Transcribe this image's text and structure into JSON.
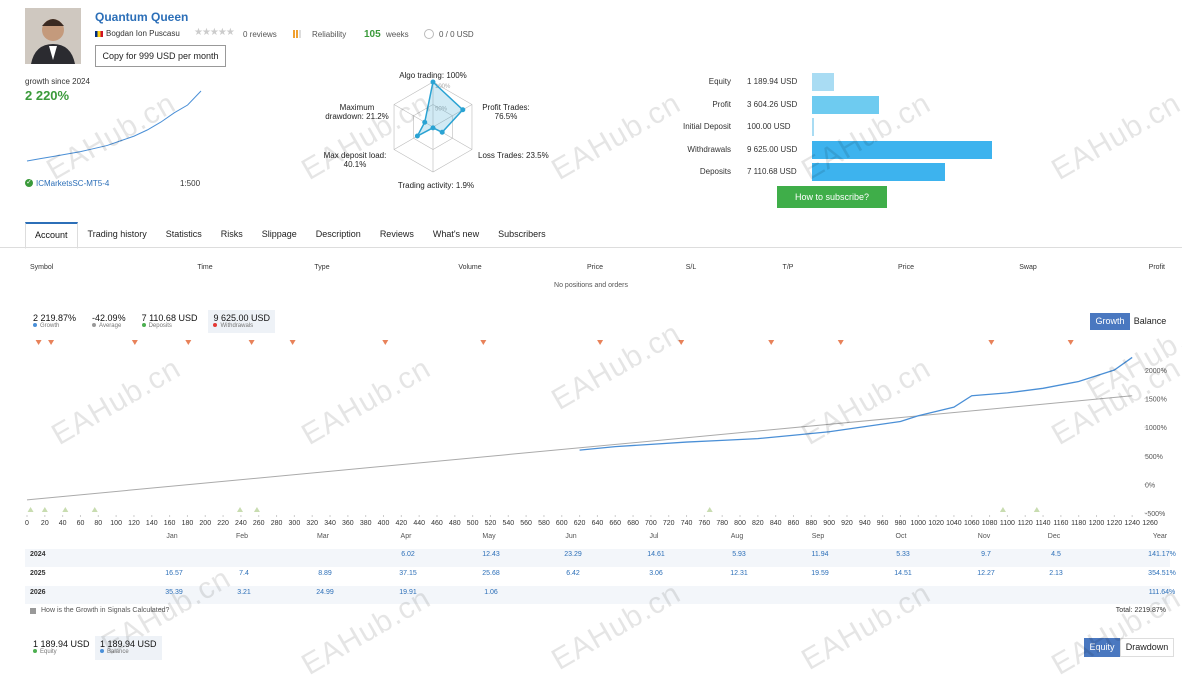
{
  "header": {
    "title": "Quantum Queen",
    "author": "Bogdan Ion Puscasu",
    "reviews": "0 reviews",
    "reliability": "Reliability",
    "weeks": "105",
    "weeks_unit": "weeks",
    "subscription": "0 / 0 USD",
    "copy_button": "Copy for 999 USD per month"
  },
  "summary": {
    "growth_label": "growth since 2024",
    "growth_value": "2 220%",
    "broker": "ICMarketsSC-MT5-4",
    "leverage": "1:500",
    "sparkline": [
      0,
      3,
      6,
      9,
      12,
      16,
      20,
      26,
      32,
      40,
      50,
      62,
      72,
      90
    ]
  },
  "radar": {
    "ticks": [
      {
        "value": 100,
        "label": "100%"
      },
      {
        "value": 50,
        "label": "50%"
      }
    ],
    "axes": [
      {
        "label": "Algo trading: 100%",
        "value": 100
      },
      {
        "label": "Profit Trades: 76.5%",
        "value": 76.5
      },
      {
        "label": "Loss Trades: 23.5%",
        "value": 23.5
      },
      {
        "label": "Trading activity: 1.9%",
        "value": 1.9
      },
      {
        "label": "Max deposit load: 40.1%",
        "value": 40.1
      },
      {
        "label": "Maximum drawdown: 21.2%",
        "value": 21.2
      }
    ]
  },
  "balances": [
    {
      "name": "Equity",
      "value": 1189.94,
      "label": "1 189.94 USD",
      "color": "#a9dcf3"
    },
    {
      "name": "Profit",
      "value": 3604.26,
      "label": "3 604.26 USD",
      "color": "#6ecbf0"
    },
    {
      "name": "Initial Deposit",
      "value": 100.0,
      "label": "100.00 USD",
      "color": "#a9dcf3"
    },
    {
      "name": "Withdrawals",
      "value": 9625.0,
      "label": "9 625.00 USD",
      "color": "#3db3ee"
    },
    {
      "name": "Deposits",
      "value": 7110.68,
      "label": "7 110.68 USD",
      "color": "#3db3ee"
    }
  ],
  "subscribe_button": "How to subscribe?",
  "tabs": [
    "Account",
    "Trading history",
    "Statistics",
    "Risks",
    "Slippage",
    "Description",
    "Reviews",
    "What's new",
    "Subscribers"
  ],
  "active_tab": 0,
  "positions": {
    "columns": [
      "Symbol",
      "Time",
      "Type",
      "Volume",
      "Price",
      "S/L",
      "T/P",
      "Price",
      "Swap",
      "Profit"
    ],
    "empty": "No positions and orders"
  },
  "stats": [
    {
      "value": "2 219.87%",
      "label": "Growth",
      "color": "#4a90d9"
    },
    {
      "value": "-42.09%",
      "label": "Average",
      "color": "#999999"
    },
    {
      "value": "7 110.68 USD",
      "label": "Deposits",
      "color": "#4caf50"
    },
    {
      "value": "9 625.00 USD",
      "label": "Withdrawals",
      "color": "#e53935"
    }
  ],
  "chart_buttons": [
    "Growth",
    "Balance"
  ],
  "chart_data": {
    "type": "line",
    "xlim": [
      0,
      1260
    ],
    "xticks": [
      0,
      20,
      40,
      60,
      80,
      100,
      120,
      140,
      160,
      180,
      200,
      220,
      240,
      260,
      280,
      300,
      320,
      340,
      360,
      380,
      400,
      420,
      440,
      460,
      480,
      500,
      520,
      540,
      560,
      580,
      600,
      620,
      640,
      660,
      680,
      700,
      720,
      740,
      760,
      780,
      800,
      820,
      840,
      860,
      880,
      900,
      920,
      940,
      960,
      980,
      1000,
      1020,
      1040,
      1060,
      1080,
      1100,
      1120,
      1140,
      1160,
      1180,
      1200,
      1220,
      1240,
      1260
    ],
    "y2lim": [
      -500,
      2350
    ],
    "y2ticks": [
      {
        "value": -500,
        "label": "-500%"
      },
      {
        "value": 0,
        "label": "0%"
      },
      {
        "value": 500,
        "label": "500%"
      },
      {
        "value": 1000,
        "label": "1000%"
      },
      {
        "value": 1500,
        "label": "1500%"
      },
      {
        "value": 2000,
        "label": "2000%"
      }
    ],
    "series": [
      {
        "name": "Growth",
        "color": "#4a8fd6",
        "axis": "y2",
        "x": [
          620,
          660,
          700,
          740,
          780,
          820,
          860,
          900,
          940,
          980,
          1000,
          1040,
          1060,
          1100,
          1140,
          1180,
          1220,
          1240
        ],
        "values": [
          600,
          660,
          700,
          740,
          770,
          800,
          860,
          920,
          1010,
          1100,
          1200,
          1350,
          1550,
          1600,
          1680,
          1800,
          2000,
          2220
        ]
      },
      {
        "color": "#aaaaaa",
        "axis": "y2",
        "x": [
          0,
          1240
        ],
        "values": [
          -270,
          1550
        ]
      }
    ],
    "withdrawals_x": [
      13,
      27,
      121,
      181,
      252,
      298,
      402,
      512,
      643,
      734,
      835,
      913,
      1082,
      1171
    ],
    "deposits_x": [
      4,
      20,
      43,
      76,
      239,
      258,
      766,
      1095,
      1133
    ]
  },
  "monthly": {
    "columns": [
      "Jan",
      "Feb",
      "Mar",
      "Apr",
      "May",
      "Jun",
      "Jul",
      "Aug",
      "Sep",
      "Oct",
      "Nov",
      "Dec",
      "Year"
    ],
    "rows": [
      {
        "year": "2024",
        "cells": [
          null,
          null,
          null,
          "6.02",
          "12.43",
          "23.29",
          "14.61",
          "5.93",
          "11.94",
          "5.33",
          "9.7",
          "4.5",
          "141.17%"
        ]
      },
      {
        "year": "2025",
        "cells": [
          "16.57",
          "7.4",
          "8.89",
          "37.15",
          "25.68",
          "6.42",
          "3.06",
          "12.31",
          "19.59",
          "14.51",
          "12.27",
          "2.13",
          "354.51%"
        ]
      },
      {
        "year": "2026",
        "cells": [
          "35.39",
          "3.21",
          "24.99",
          "19.91",
          "1.06",
          null,
          null,
          null,
          null,
          null,
          null,
          null,
          "111.64%"
        ]
      }
    ],
    "link": "How is the Growth in Signals Calculated?",
    "total": "Total: 2219.87%"
  },
  "footer": {
    "stats": [
      {
        "value": "1 189.94 USD",
        "label": "Equity",
        "color": "#4caf50"
      },
      {
        "value": "1 189.94 USD",
        "label": "Balance",
        "color": "#4a90d9"
      }
    ],
    "buttons": [
      "Equity",
      "Drawdown"
    ]
  },
  "watermark": "EAHub.cn"
}
